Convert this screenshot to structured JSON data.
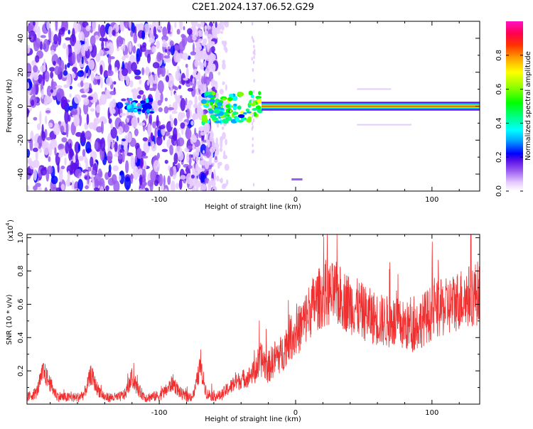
{
  "title": "C2E1.2024.137.06.52.G29",
  "colors": {
    "snr_line": "#f03030",
    "colormap": [
      "#ffffff",
      "#e6ccff",
      "#9a5cf0",
      "#5a10e8",
      "#0000ff",
      "#00aaff",
      "#00ffff",
      "#00ff80",
      "#00ff00",
      "#80ff00",
      "#ffff00",
      "#ffa500",
      "#ff3000",
      "#ff0050",
      "#ff10c0"
    ]
  },
  "chart_data": [
    {
      "type": "heatmap",
      "title": "C2E1.2024.137.06.52.G29",
      "xlabel": "Height of straight line (km)",
      "ylabel": "Frequency (Hz)",
      "xlim": [
        -197,
        135
      ],
      "ylim": [
        -50,
        50
      ],
      "xticks": [
        -100,
        0,
        100
      ],
      "xtick_labels": [
        "-100",
        "0",
        "100"
      ],
      "yticks": [
        -40,
        -20,
        0,
        20,
        40
      ],
      "ytick_labels": [
        "-40",
        "-20",
        "0",
        "20",
        "40"
      ],
      "colorbar": {
        "label": "Normalized spectral amplitude",
        "range": [
          0,
          1
        ],
        "ticks": [
          0.0,
          0.2,
          0.4,
          0.6,
          0.8
        ],
        "tick_labels": [
          "0.0",
          "0.2",
          "0.4",
          "0.6",
          "0.8"
        ]
      },
      "description_data": {
        "carrier_frequency_hz": 0,
        "noise_region_km": [
          -197,
          -70
        ],
        "scattered_region_km": [
          -70,
          -25
        ],
        "clean_carrier_km": [
          -25,
          135
        ]
      }
    },
    {
      "type": "line",
      "xlabel": "Height of straight line (km)",
      "ylabel": "SNR (10 * v/v)",
      "yscale_label": "(x10",
      "yscale_exp": "4",
      "xlim": [
        -197,
        135
      ],
      "ylim": [
        0,
        1.02
      ],
      "xticks": [
        -100,
        0,
        100
      ],
      "xtick_labels": [
        "-100",
        "0",
        "100"
      ],
      "yticks": [
        0.2,
        0.4,
        0.6,
        0.8,
        1.0
      ],
      "ytick_labels": [
        "0.2",
        "0.4",
        "0.6",
        "0.8",
        "1.0"
      ],
      "series": [
        {
          "x": [
            -197,
            -190,
            -185,
            -180,
            -175,
            -170,
            -160,
            -155,
            -150,
            -146,
            -140,
            -130,
            -125,
            -120,
            -116,
            -110,
            -100,
            -95,
            -90,
            -85,
            -80,
            -75,
            -70,
            -65,
            -60,
            -55,
            -50,
            -45,
            -40,
            -35,
            -30,
            -25,
            -20,
            -15,
            -10,
            -5,
            0,
            5,
            10,
            15,
            20,
            25,
            30,
            35,
            40,
            45,
            50,
            55,
            60,
            65,
            70,
            75,
            80,
            85,
            90,
            95,
            100,
            105,
            110,
            115,
            120,
            125,
            130,
            135
          ],
          "values": [
            0.04,
            0.07,
            0.2,
            0.12,
            0.05,
            0.04,
            0.04,
            0.06,
            0.18,
            0.1,
            0.04,
            0.04,
            0.06,
            0.16,
            0.09,
            0.04,
            0.05,
            0.08,
            0.13,
            0.07,
            0.04,
            0.05,
            0.22,
            0.06,
            0.05,
            0.05,
            0.09,
            0.12,
            0.15,
            0.16,
            0.2,
            0.27,
            0.22,
            0.28,
            0.3,
            0.4,
            0.42,
            0.48,
            0.56,
            0.62,
            0.65,
            0.66,
            0.66,
            0.63,
            0.6,
            0.58,
            0.55,
            0.53,
            0.51,
            0.5,
            0.49,
            0.48,
            0.47,
            0.46,
            0.48,
            0.52,
            0.55,
            0.57,
            0.58,
            0.6,
            0.63,
            0.64,
            0.66,
            0.67
          ]
        }
      ]
    }
  ]
}
